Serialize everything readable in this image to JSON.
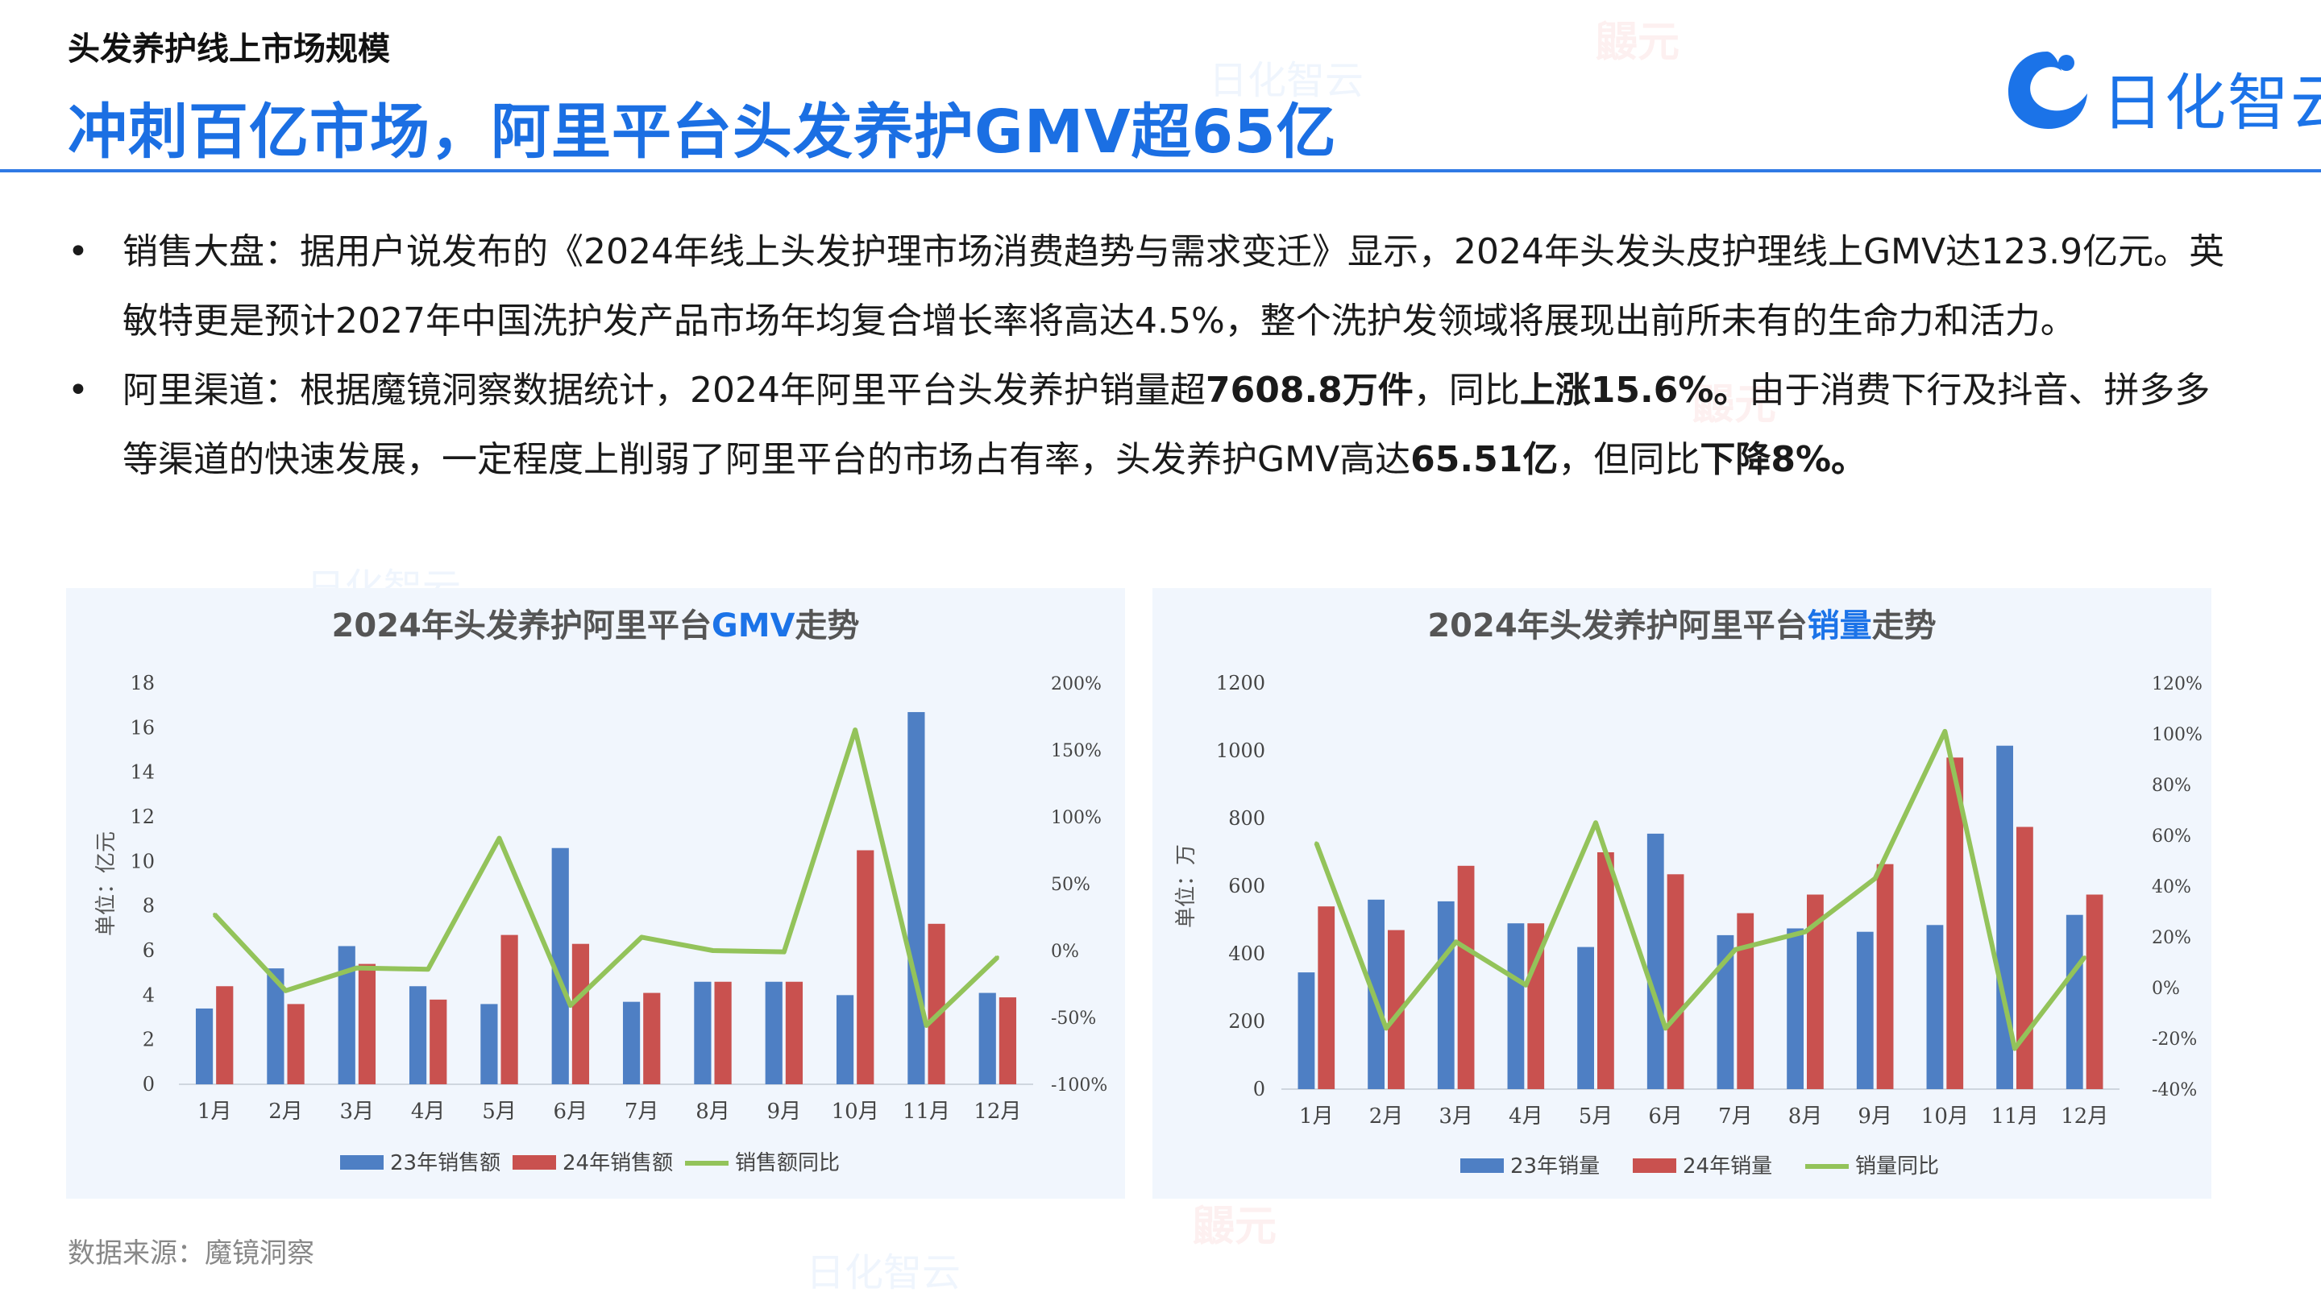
{
  "header": {
    "kicker": "头发养护线上市场规模",
    "title": "冲刺百亿市场，阿里平台头发养护GMV超65亿",
    "logo_text": "日化智云"
  },
  "bullets": [
    {
      "dot": "•",
      "text_1": "销售大盘：据用户说发布的《2024年线上头发护理市场消费趋势与需求变迁》显示，2024年头发头皮护理线上GMV达123.9亿元。英敏特更是预计2027年中国洗护发产品市场年均复合增长率将高达4.5%，整个洗护发领域将展现出前所未有的生命力和活力。"
    },
    {
      "dot": "•",
      "text_1": "阿里渠道：根据魔镜洞察数据统计，2024年阿里平台头发养护销量超",
      "bold_1": "7608.8万件",
      "text_2": "，同比",
      "bold_2": "上涨15.6%。",
      "text_3": "由于消费下行及抖音、拼多多等渠道的快速发展，一定程度上削弱了阿里平台的市场占有率，头发养护GMV高达",
      "bold_3": "65.51亿",
      "text_4": "，但同比",
      "bold_4": "下降8%。"
    }
  ],
  "source": "数据来源：魔镜洞察",
  "watermark": {
    "brand_a": "鼹元",
    "brand_b": "日化智云"
  },
  "colors": {
    "title": "#1b6fe3",
    "accent_blue": "#1b73e8",
    "bar_23": "#4e7fc4",
    "bar_24": "#c9514f",
    "line": "#93c35a",
    "panel_bg": "#f1f6fd"
  },
  "chart_data": [
    {
      "type": "bar",
      "title_prefix": "2024年头发养护阿里平台",
      "title_highlight": "GMV",
      "title_suffix": "走势",
      "ylabel": "单位：亿元",
      "categories": [
        "1月",
        "2月",
        "3月",
        "4月",
        "5月",
        "6月",
        "7月",
        "8月",
        "9月",
        "10月",
        "11月",
        "12月"
      ],
      "ylim": [
        0,
        18
      ],
      "yticks": [
        0,
        2,
        4,
        6,
        8,
        10,
        12,
        14,
        16,
        18
      ],
      "y2lim": [
        -100,
        200
      ],
      "y2ticks": [
        -100,
        -50,
        0,
        50,
        100,
        150,
        200
      ],
      "y2tick_labels": [
        "-100%",
        "-50%",
        "0%",
        "50%",
        "100%",
        "150%",
        "200%"
      ],
      "series": [
        {
          "name": "23年销售额",
          "kind": "bar",
          "values": [
            3.4,
            5.2,
            6.2,
            4.4,
            3.6,
            10.6,
            3.7,
            4.6,
            4.6,
            4.0,
            16.7,
            4.1
          ]
        },
        {
          "name": "24年销售额",
          "kind": "bar",
          "values": [
            4.4,
            3.6,
            5.4,
            3.8,
            6.7,
            6.3,
            4.1,
            4.6,
            4.6,
            10.5,
            7.2,
            3.9
          ]
        },
        {
          "name": "销售额同比",
          "kind": "line",
          "axis": "right",
          "values": [
            27,
            -30,
            -13,
            -14,
            84,
            -41,
            10,
            0,
            -1,
            165,
            -56,
            -5
          ]
        }
      ],
      "legend": "bottom"
    },
    {
      "type": "bar",
      "title_prefix": "2024年头发养护阿里平台",
      "title_highlight": "销量",
      "title_suffix": "走势",
      "ylabel": "单位：万",
      "categories": [
        "1月",
        "2月",
        "3月",
        "4月",
        "5月",
        "6月",
        "7月",
        "8月",
        "9月",
        "10月",
        "11月",
        "12月"
      ],
      "ylim": [
        0,
        1200
      ],
      "yticks": [
        0,
        200,
        400,
        600,
        800,
        1000,
        1200
      ],
      "y2lim": [
        -40,
        120
      ],
      "y2ticks": [
        -40,
        -20,
        0,
        20,
        40,
        60,
        80,
        100,
        120
      ],
      "y2tick_labels": [
        "-40%",
        "-20%",
        "0%",
        "20%",
        "40%",
        "60%",
        "80%",
        "100%",
        "120%"
      ],
      "series": [
        {
          "name": "23年销量",
          "kind": "bar",
          "values": [
            345,
            560,
            555,
            490,
            420,
            755,
            455,
            475,
            465,
            485,
            1015,
            515
          ]
        },
        {
          "name": "24年销量",
          "kind": "bar",
          "values": [
            540,
            470,
            660,
            490,
            700,
            635,
            520,
            575,
            665,
            980,
            775,
            575
          ]
        },
        {
          "name": "销量同比",
          "kind": "line",
          "axis": "right",
          "values": [
            57,
            -16,
            18,
            1,
            65,
            -16,
            15,
            22,
            43,
            101,
            -24,
            12
          ]
        }
      ],
      "legend": "bottom"
    }
  ]
}
